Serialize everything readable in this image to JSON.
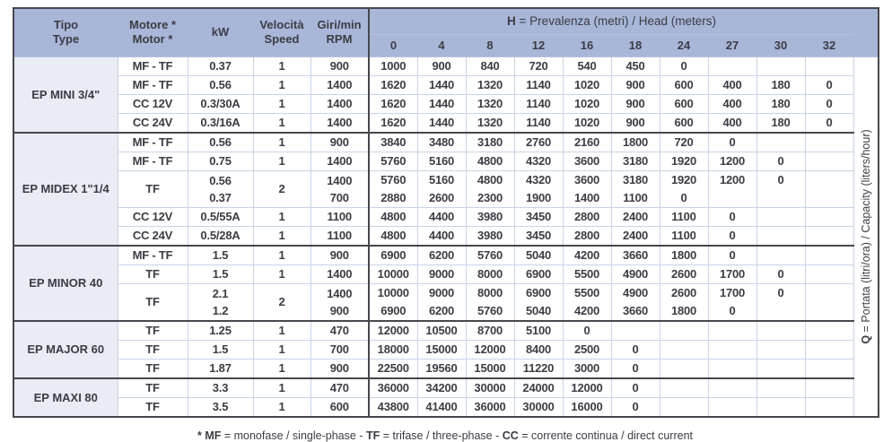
{
  "table": {
    "headers": {
      "tipo": "Tipo\nType",
      "motore": "Motore *\nMotor *",
      "kw": "kW",
      "velocita": "Velocità\nSpeed",
      "giri": "Giri/min\nRPM",
      "h_bold": "H",
      "h_rest": " = Prevalenza (metri) / Head (meters)",
      "h_columns": [
        "0",
        "4",
        "8",
        "12",
        "16",
        "18",
        "24",
        "27",
        "30",
        "32"
      ]
    },
    "q_label": {
      "bold": "Q",
      "rest": " = Portata (litri/ora) / Capacity (liters/hour)"
    },
    "groups": [
      {
        "name": "EP MINI 3/4\"",
        "rows": [
          {
            "motor": "MF - TF",
            "kw": "0.37",
            "speed": "1",
            "rpm": "900",
            "values": [
              "1000",
              "900",
              "840",
              "720",
              "540",
              "450",
              "0",
              "",
              "",
              ""
            ]
          },
          {
            "motor": "MF - TF",
            "kw": "0.56",
            "speed": "1",
            "rpm": "1400",
            "values": [
              "1620",
              "1440",
              "1320",
              "1140",
              "1020",
              "900",
              "600",
              "400",
              "180",
              "0"
            ]
          },
          {
            "motor": "CC 12V",
            "kw": "0.3/30A",
            "speed": "1",
            "rpm": "1400",
            "values": [
              "1620",
              "1440",
              "1320",
              "1140",
              "1020",
              "900",
              "600",
              "400",
              "180",
              "0"
            ]
          },
          {
            "motor": "CC 24V",
            "kw": "0.3/16A",
            "speed": "1",
            "rpm": "1400",
            "values": [
              "1620",
              "1440",
              "1320",
              "1140",
              "1020",
              "900",
              "600",
              "400",
              "180",
              "0"
            ]
          }
        ]
      },
      {
        "name": "EP MIDEX 1\"1/4",
        "rows": [
          {
            "motor": "MF - TF",
            "kw": "0.56",
            "speed": "1",
            "rpm": "900",
            "values": [
              "3840",
              "3480",
              "3180",
              "2760",
              "2160",
              "1800",
              "720",
              "0",
              "",
              ""
            ]
          },
          {
            "motor": "MF - TF",
            "kw": "0.75",
            "speed": "1",
            "rpm": "1400",
            "values": [
              "5760",
              "5160",
              "4800",
              "4320",
              "3600",
              "3180",
              "1920",
              "1200",
              "0",
              ""
            ]
          },
          {
            "motor": "TF",
            "kw": "0.56\n0.37",
            "speed": "2",
            "rpm": "1400\n700",
            "two_speed": true,
            "values": [
              [
                "5760",
                "2880"
              ],
              [
                "5160",
                "2600"
              ],
              [
                "4800",
                "2300"
              ],
              [
                "4320",
                "1900"
              ],
              [
                "3600",
                "1400"
              ],
              [
                "3180",
                "1100"
              ],
              [
                "1920",
                "0"
              ],
              [
                "1200",
                ""
              ],
              [
                "0",
                ""
              ],
              [
                "",
                ""
              ]
            ]
          },
          {
            "motor": "CC 12V",
            "kw": "0.5/55A",
            "speed": "1",
            "rpm": "1100",
            "values": [
              "4800",
              "4400",
              "3980",
              "3450",
              "2800",
              "2400",
              "1100",
              "0",
              "",
              ""
            ]
          },
          {
            "motor": "CC 24V",
            "kw": "0.5/28A",
            "speed": "1",
            "rpm": "1100",
            "values": [
              "4800",
              "4400",
              "3980",
              "3450",
              "2800",
              "2400",
              "1100",
              "0",
              "",
              ""
            ]
          }
        ]
      },
      {
        "name": "EP MINOR 40",
        "rows": [
          {
            "motor": "MF - TF",
            "kw": "1.5",
            "speed": "1",
            "rpm": "900",
            "values": [
              "6900",
              "6200",
              "5760",
              "5040",
              "4200",
              "3660",
              "1800",
              "0",
              "",
              ""
            ]
          },
          {
            "motor": "TF",
            "kw": "1.5",
            "speed": "1",
            "rpm": "1400",
            "values": [
              "10000",
              "9000",
              "8000",
              "6900",
              "5500",
              "4900",
              "2600",
              "1700",
              "0",
              ""
            ]
          },
          {
            "motor": "TF",
            "kw": "2.1\n1.2",
            "speed": "2",
            "rpm": "1400\n900",
            "two_speed": true,
            "values": [
              [
                "10000",
                "6900"
              ],
              [
                "9000",
                "6200"
              ],
              [
                "8000",
                "5760"
              ],
              [
                "6900",
                "5040"
              ],
              [
                "5500",
                "4200"
              ],
              [
                "4900",
                "3660"
              ],
              [
                "2600",
                "1800"
              ],
              [
                "1700",
                "0"
              ],
              [
                "0",
                ""
              ],
              [
                "",
                ""
              ]
            ]
          }
        ]
      },
      {
        "name": "EP MAJOR 60",
        "rows": [
          {
            "motor": "TF",
            "kw": "1.25",
            "speed": "1",
            "rpm": "470",
            "values": [
              "12000",
              "10500",
              "8700",
              "5100",
              "0",
              "",
              "",
              "",
              "",
              ""
            ]
          },
          {
            "motor": "TF",
            "kw": "1.5",
            "speed": "1",
            "rpm": "700",
            "values": [
              "18000",
              "15000",
              "12000",
              "8400",
              "2500",
              "0",
              "",
              "",
              "",
              ""
            ]
          },
          {
            "motor": "TF",
            "kw": "1.87",
            "speed": "1",
            "rpm": "900",
            "values": [
              "22500",
              "19560",
              "15000",
              "11220",
              "3000",
              "0",
              "",
              "",
              "",
              ""
            ]
          }
        ]
      },
      {
        "name": "EP MAXI 80",
        "rows": [
          {
            "motor": "TF",
            "kw": "3.3",
            "speed": "1",
            "rpm": "470",
            "values": [
              "36000",
              "34200",
              "30000",
              "24000",
              "12000",
              "0",
              "",
              "",
              "",
              ""
            ]
          },
          {
            "motor": "TF",
            "kw": "3.5",
            "speed": "1",
            "rpm": "600",
            "values": [
              "43800",
              "41400",
              "36000",
              "30000",
              "16000",
              "0",
              "",
              "",
              "",
              ""
            ]
          }
        ]
      }
    ]
  },
  "footnote": {
    "segments": [
      {
        "text": "* MF",
        "bold": true
      },
      {
        "text": " = monofase / single-phase - ",
        "bold": false
      },
      {
        "text": "TF",
        "bold": true
      },
      {
        "text": " = trifase / three-phase - ",
        "bold": false
      },
      {
        "text": "CC",
        "bold": true
      },
      {
        "text": " = corrente continua / direct current",
        "bold": false
      }
    ]
  },
  "colors": {
    "header_blue": "#a8b6d8",
    "group_bg": "#e9ecf5",
    "row_line": "#b5c3de",
    "column_line": "#c9d3e6",
    "border_dark": "#47474e",
    "text": "#3c3c44"
  }
}
